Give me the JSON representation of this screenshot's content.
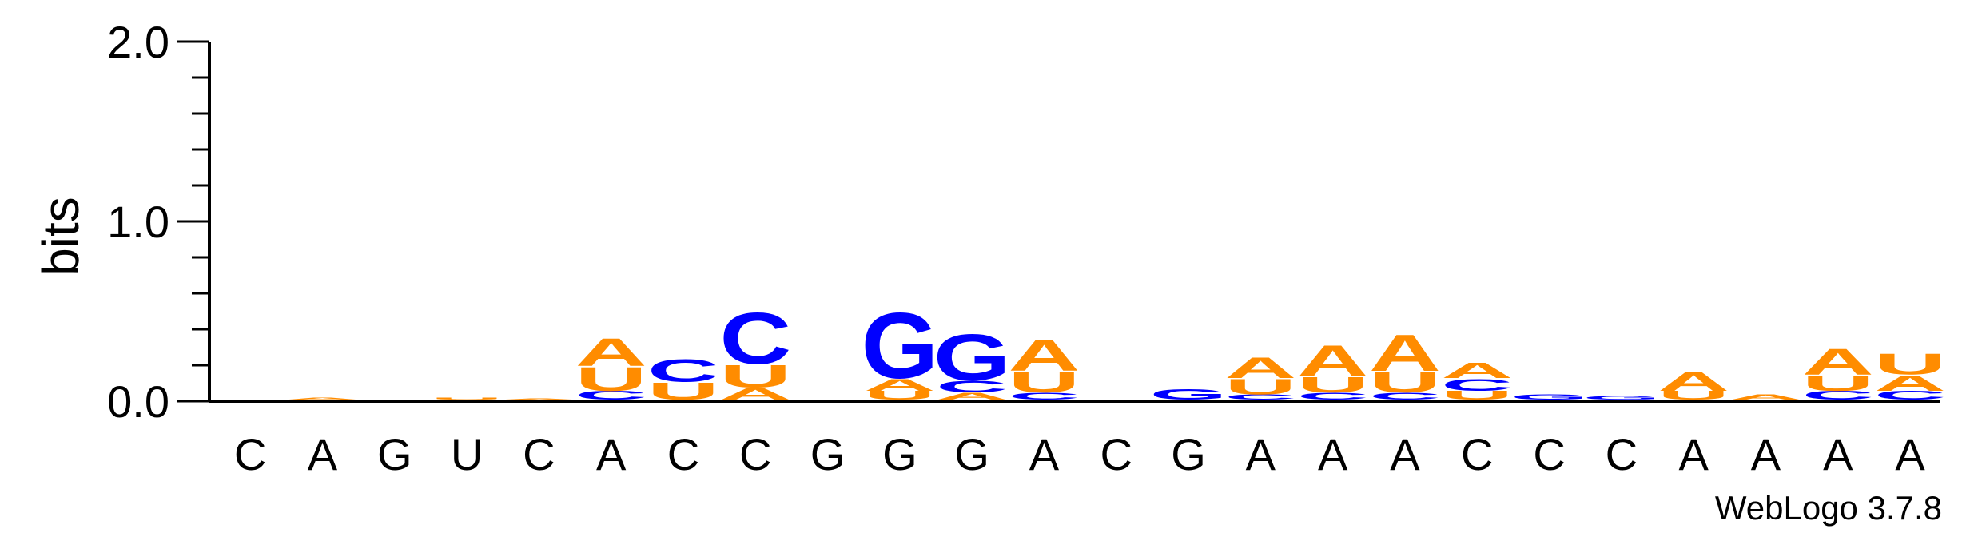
{
  "chart_data": {
    "type": "sequence-logo",
    "ylabel": "bits",
    "ylim": [
      0,
      2
    ],
    "yticks": [
      {
        "value": 0,
        "label": "0.0"
      },
      {
        "value": 1,
        "label": "1.0"
      },
      {
        "value": 2,
        "label": "2.0"
      }
    ],
    "colors": {
      "A": "#ff8c00",
      "U": "#ff8c00",
      "C": "#0000ff",
      "G": "#0000ff"
    },
    "positions": [
      {
        "label": "C",
        "stack": []
      },
      {
        "label": "A",
        "stack": [
          {
            "letter": "A",
            "bits": 0.012
          }
        ]
      },
      {
        "label": "G",
        "stack": []
      },
      {
        "label": "U",
        "stack": [
          {
            "letter": "U",
            "bits": 0.012
          }
        ]
      },
      {
        "label": "C",
        "stack": [
          {
            "letter": "A",
            "bits": 0.006
          }
        ]
      },
      {
        "label": "A",
        "stack": [
          {
            "letter": "C",
            "bits": 0.05
          },
          {
            "letter": "U",
            "bits": 0.14
          },
          {
            "letter": "A",
            "bits": 0.16
          }
        ]
      },
      {
        "label": "C",
        "stack": [
          {
            "letter": "U",
            "bits": 0.1
          },
          {
            "letter": "C",
            "bits": 0.13
          }
        ]
      },
      {
        "label": "C",
        "stack": [
          {
            "letter": "A",
            "bits": 0.07
          },
          {
            "letter": "U",
            "bits": 0.13
          },
          {
            "letter": "C",
            "bits": 0.3
          }
        ]
      },
      {
        "label": "G",
        "stack": []
      },
      {
        "label": "G",
        "stack": [
          {
            "letter": "U",
            "bits": 0.05
          },
          {
            "letter": "A",
            "bits": 0.07
          },
          {
            "letter": "G",
            "bits": 0.38
          }
        ]
      },
      {
        "label": "G",
        "stack": [
          {
            "letter": "A",
            "bits": 0.04
          },
          {
            "letter": "C",
            "bits": 0.07
          },
          {
            "letter": "G",
            "bits": 0.27
          }
        ]
      },
      {
        "label": "A",
        "stack": [
          {
            "letter": "C",
            "bits": 0.04
          },
          {
            "letter": "U",
            "bits": 0.12
          },
          {
            "letter": "A",
            "bits": 0.18
          }
        ]
      },
      {
        "label": "C",
        "stack": []
      },
      {
        "label": "G",
        "stack": [
          {
            "letter": "G",
            "bits": 0.06
          }
        ]
      },
      {
        "label": "A",
        "stack": [
          {
            "letter": "C",
            "bits": 0.03
          },
          {
            "letter": "U",
            "bits": 0.09
          },
          {
            "letter": "A",
            "bits": 0.12
          }
        ]
      },
      {
        "label": "A",
        "stack": [
          {
            "letter": "C",
            "bits": 0.04
          },
          {
            "letter": "U",
            "bits": 0.09
          },
          {
            "letter": "A",
            "bits": 0.18
          }
        ]
      },
      {
        "label": "A",
        "stack": [
          {
            "letter": "C",
            "bits": 0.04
          },
          {
            "letter": "U",
            "bits": 0.12
          },
          {
            "letter": "A",
            "bits": 0.21
          }
        ]
      },
      {
        "label": "C",
        "stack": [
          {
            "letter": "U",
            "bits": 0.05
          },
          {
            "letter": "C",
            "bits": 0.07
          },
          {
            "letter": "A",
            "bits": 0.09
          }
        ]
      },
      {
        "label": "C",
        "stack": [
          {
            "letter": "G",
            "bits": 0.03
          }
        ]
      },
      {
        "label": "C",
        "stack": [
          {
            "letter": "G",
            "bits": 0.02
          }
        ]
      },
      {
        "label": "A",
        "stack": [
          {
            "letter": "U",
            "bits": 0.05
          },
          {
            "letter": "A",
            "bits": 0.11
          }
        ]
      },
      {
        "label": "A",
        "stack": [
          {
            "letter": "A",
            "bits": 0.03
          }
        ]
      },
      {
        "label": "A",
        "stack": [
          {
            "letter": "C",
            "bits": 0.05
          },
          {
            "letter": "U",
            "bits": 0.09
          },
          {
            "letter": "A",
            "bits": 0.15
          }
        ]
      },
      {
        "label": "A",
        "stack": [
          {
            "letter": "C",
            "bits": 0.05
          },
          {
            "letter": "A",
            "bits": 0.09
          },
          {
            "letter": "U",
            "bits": 0.12
          }
        ]
      }
    ]
  },
  "footer": {
    "credit": "WebLogo 3.7.8"
  }
}
